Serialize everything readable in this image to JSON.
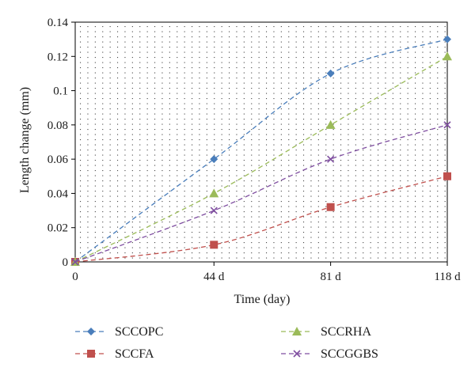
{
  "chart_data": {
    "type": "line",
    "xlabel": "Time (day)",
    "ylabel": "Length change (mm)",
    "x": [
      0,
      44,
      81,
      118
    ],
    "x_tick_labels": [
      "0",
      "44 d",
      "81 d",
      "118 d"
    ],
    "y_ticks": [
      "0",
      "0.02",
      "0.04",
      "0.06",
      "0.08",
      "0.1",
      "0.12",
      "0.14"
    ],
    "ylim": [
      0,
      0.14
    ],
    "grid": "dotted",
    "legend_position": "bottom",
    "series": [
      {
        "name": "SCCOPC",
        "values": [
          0,
          0.06,
          0.11,
          0.13
        ],
        "color": "#4a7ebb",
        "marker": "diamond"
      },
      {
        "name": "SCCFA",
        "values": [
          0,
          0.01,
          0.032,
          0.05
        ],
        "color": "#c0504d",
        "marker": "square"
      },
      {
        "name": "SCCRHA",
        "values": [
          0,
          0.04,
          0.08,
          0.12
        ],
        "color": "#9bbb59",
        "marker": "triangle"
      },
      {
        "name": "SCCGGBS",
        "values": [
          0,
          0.03,
          0.06,
          0.08
        ],
        "color": "#7f4ea0",
        "marker": "x"
      }
    ]
  }
}
